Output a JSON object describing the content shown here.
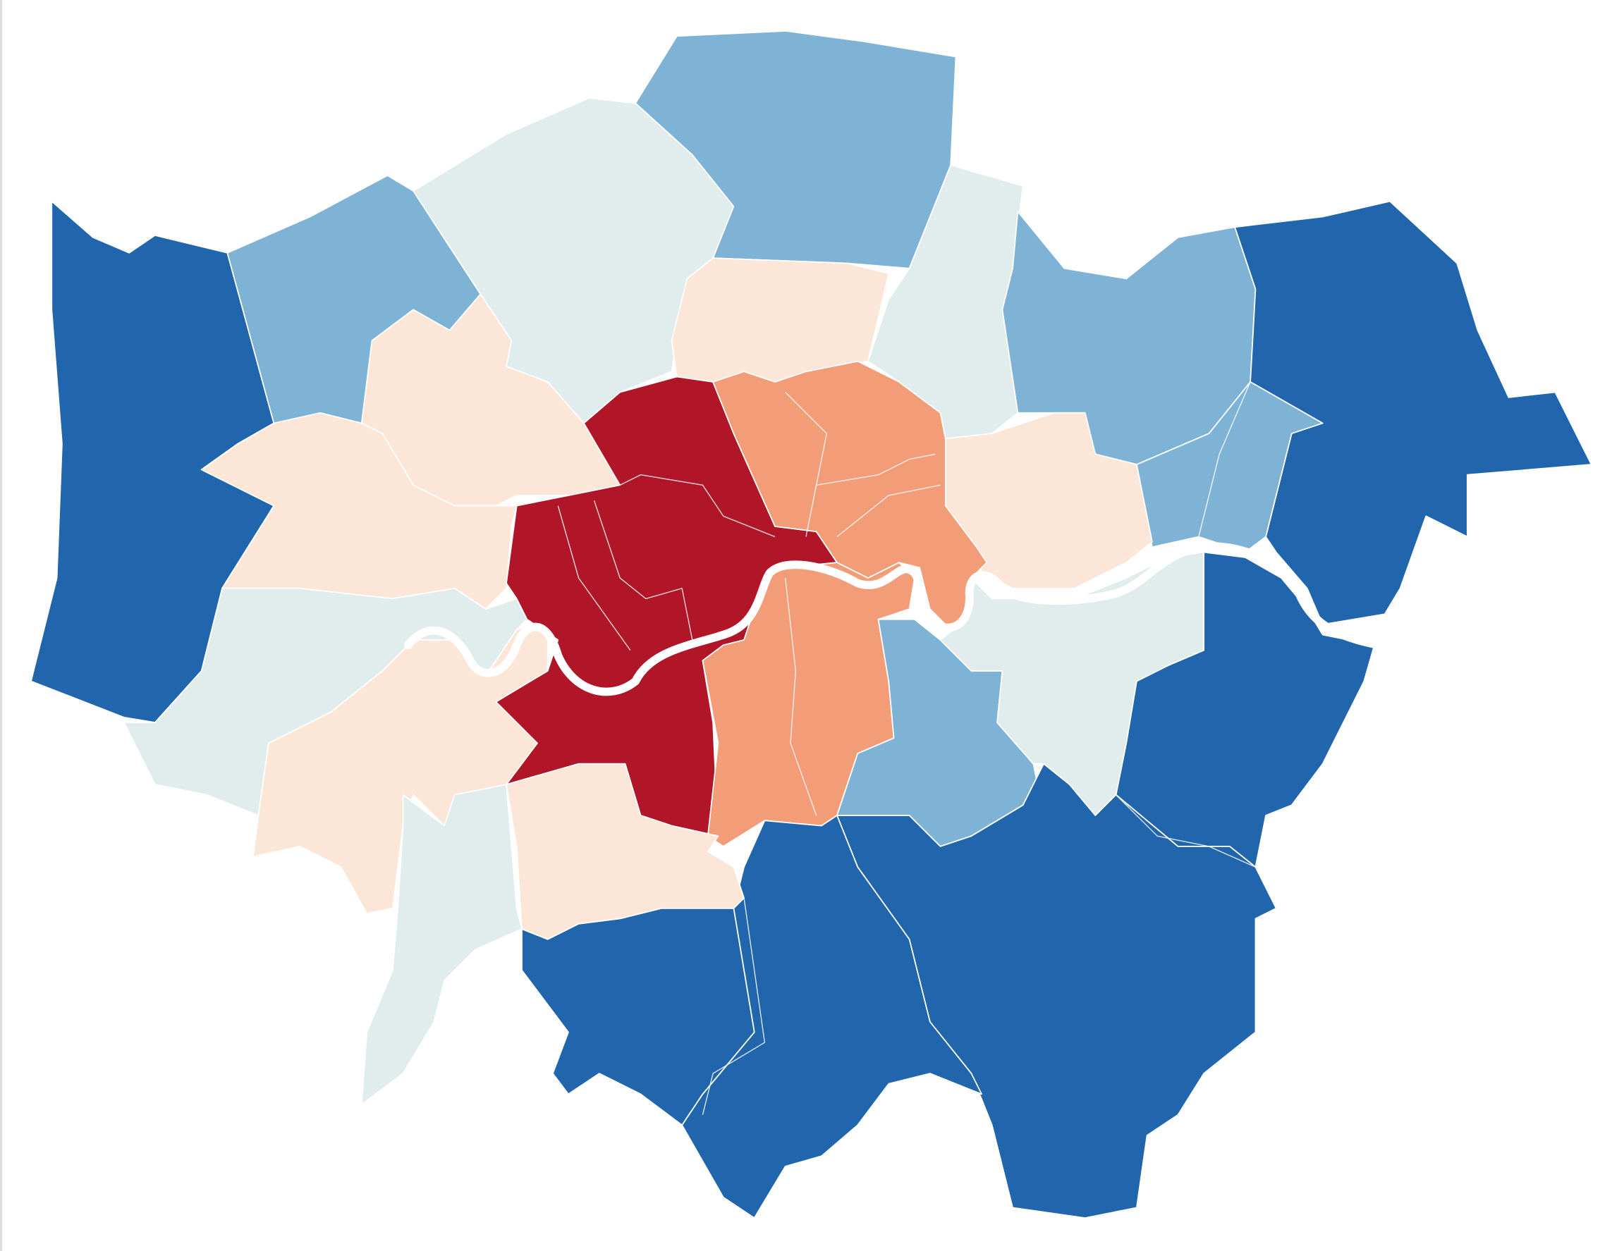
{
  "map": {
    "type": "choropleth",
    "color_scale": [
      "#b01628",
      "#f39c78",
      "#fce6d7",
      "#e1eded",
      "#7fb3d6",
      "#2166ac"
    ],
    "river_color": "#ffffff",
    "background": "#ffffff",
    "regions": [
      {
        "id": "hillingdon",
        "level": 5
      },
      {
        "id": "harrow",
        "level": 4
      },
      {
        "id": "barnet",
        "level": 3
      },
      {
        "id": "enfield",
        "level": 4
      },
      {
        "id": "waltham-forest",
        "level": 3
      },
      {
        "id": "redbridge",
        "level": 4
      },
      {
        "id": "havering",
        "level": 5
      },
      {
        "id": "barking-dagenham",
        "level": 4
      },
      {
        "id": "newham",
        "level": 2
      },
      {
        "id": "haringey",
        "level": 2
      },
      {
        "id": "brent",
        "level": 2
      },
      {
        "id": "ealing",
        "level": 2
      },
      {
        "id": "hounslow",
        "level": 3
      },
      {
        "id": "richmond",
        "level": 2
      },
      {
        "id": "kingston",
        "level": 3
      },
      {
        "id": "central-west",
        "level": 0
      },
      {
        "id": "central-east-north",
        "level": 1
      },
      {
        "id": "central-south",
        "level": 1
      },
      {
        "id": "lewisham",
        "level": 4
      },
      {
        "id": "greenwich",
        "level": 3
      },
      {
        "id": "bexley",
        "level": 5
      },
      {
        "id": "bromley",
        "level": 5
      },
      {
        "id": "croydon",
        "level": 5
      },
      {
        "id": "sutton",
        "level": 5
      },
      {
        "id": "merton",
        "level": 2
      }
    ]
  }
}
